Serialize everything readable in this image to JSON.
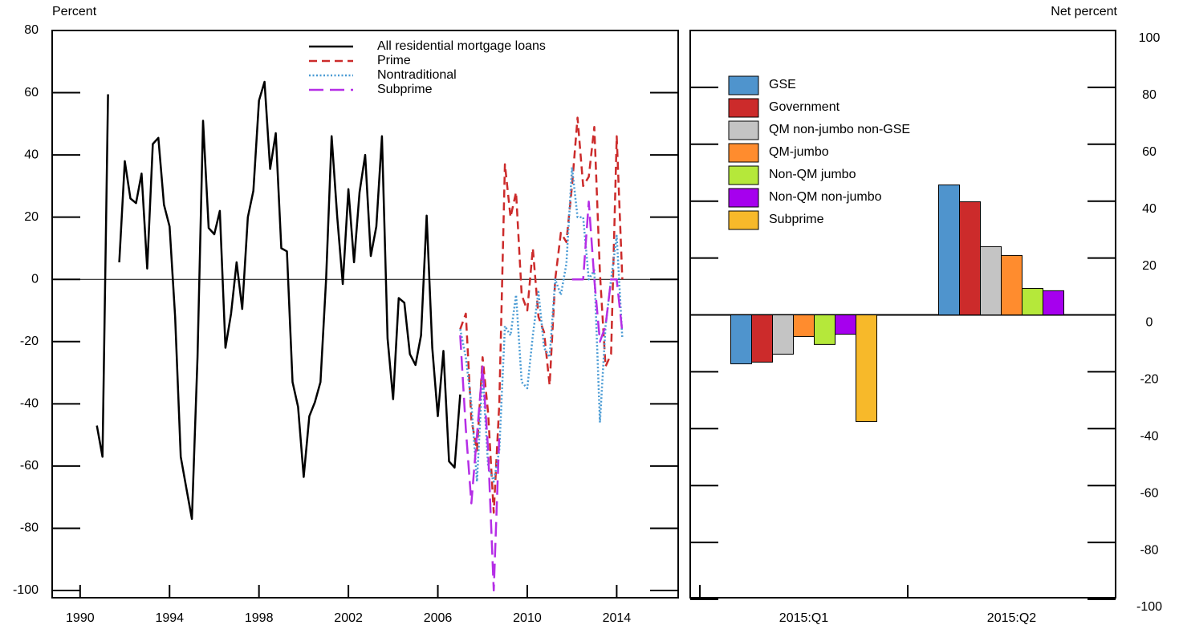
{
  "chart_data": [
    {
      "type": "line",
      "ylabel": "Percent",
      "xlim": [
        1988.75,
        2016.75
      ],
      "xticks": [
        1990,
        1994,
        1998,
        2002,
        2006,
        2010,
        2014
      ],
      "ylim": [
        -100,
        80
      ],
      "yticks": [
        -100,
        -80,
        -60,
        -40,
        -20,
        0,
        20,
        40,
        60,
        80
      ],
      "series": [
        {
          "name": "All residential mortgage loans",
          "color": "#000000",
          "style": "solid",
          "x": [
            1990.75,
            1991,
            1991.25,
            1991.5,
            1991.75,
            1992,
            1992.25,
            1992.5,
            1992.75,
            1993,
            1993.25,
            1993.5,
            1993.75,
            1994,
            1994.25,
            1994.5,
            1994.75,
            1995,
            1995.25,
            1995.5,
            1995.75,
            1996,
            1996.25,
            1996.5,
            1996.75,
            1997,
            1997.25,
            1997.5,
            1997.75,
            1998,
            1998.25,
            1998.5,
            1998.75,
            1999,
            1999.25,
            1999.5,
            1999.75,
            2000,
            2000.25,
            2000.5,
            2000.75,
            2001,
            2001.25,
            2001.5,
            2001.75,
            2002,
            2002.25,
            2002.5,
            2002.75,
            2003,
            2003.25,
            2003.5,
            2003.75,
            2004,
            2004.25,
            2004.5,
            2004.75,
            2005,
            2005.25,
            2005.5,
            2005.75,
            2006,
            2006.25,
            2006.5,
            2006.75,
            2007
          ],
          "values": [
            -47,
            -57,
            59.5,
            null,
            5.5,
            38,
            26,
            24.5,
            34,
            3.5,
            43.5,
            45.5,
            24,
            17,
            -12,
            -57,
            -67,
            -77,
            -25,
            51,
            16.5,
            14.5,
            22,
            -22,
            -11,
            5.5,
            -9.5,
            20,
            28.5,
            57.5,
            63.5,
            35.5,
            47,
            10,
            9,
            -33,
            -41,
            -63.5,
            -44,
            -39.5,
            -33,
            0,
            46,
            20,
            -1.5,
            29,
            5.5,
            28,
            40,
            7.5,
            17,
            46,
            -19,
            -38.5,
            -6,
            -7.5,
            -24,
            -27.5,
            -18,
            20.5,
            -22,
            -44,
            -23,
            -58.5,
            -60.5,
            -37
          ]
        },
        {
          "name": "Prime",
          "color": "#cc2b2b",
          "style": "dashed",
          "x": [
            2007,
            2007.25,
            2007.5,
            2007.75,
            2008,
            2008.25,
            2008.5,
            2008.75,
            2009,
            2009.25,
            2009.5,
            2009.75,
            2010,
            2010.25,
            2010.5,
            2010.75,
            2011,
            2011.25,
            2011.5,
            2011.75,
            2012,
            2012.25,
            2012.5,
            2012.75,
            2013,
            2013.25,
            2013.5,
            2013.75,
            2014,
            2014.25
          ],
          "values": [
            -16,
            -11,
            -45,
            -55,
            -25,
            -43,
            -75,
            -40,
            37,
            20,
            28,
            -5,
            -10,
            10,
            -12,
            -17,
            -34,
            0,
            15,
            12,
            30,
            52,
            30,
            33,
            49,
            2,
            -28,
            -24,
            46,
            0
          ]
        },
        {
          "name": "Nontraditional",
          "color": "#4a9bd4",
          "style": "dotted",
          "x": [
            2007,
            2007.25,
            2007.5,
            2007.75,
            2008,
            2008.25,
            2008.5,
            2008.75,
            2009,
            2009.25,
            2009.5,
            2009.75,
            2010,
            2010.25,
            2010.5,
            2010.75,
            2011,
            2011.25,
            2011.5,
            2011.75,
            2012,
            2012.25,
            2012.5,
            2012.75,
            2013,
            2013.25,
            2013.5,
            2013.75,
            2014,
            2014.25
          ],
          "values": [
            -16,
            -25,
            -40,
            -65,
            -30,
            -60,
            -65,
            -55,
            -15,
            -18,
            -5,
            -33,
            -35,
            -18,
            -4,
            -22,
            -25,
            0,
            -5,
            5,
            36,
            20,
            20,
            0,
            3,
            -46,
            -15,
            0,
            14,
            -19
          ]
        },
        {
          "name": "Subprime",
          "color": "#b52ee6",
          "style": "longdash",
          "x": [
            2007,
            2007.25,
            2007.5,
            2007.75,
            2008,
            2008.25,
            2008.5,
            2008.75,
            2009,
            2009.25,
            2009.5,
            2009.75,
            2010,
            2010.25,
            2010.5,
            2010.75,
            2011,
            2011.25,
            2011.5,
            2011.75,
            2012,
            2012.25,
            2012.5,
            2012.75,
            2013,
            2013.25,
            2013.5,
            2013.75,
            2014,
            2014.25
          ],
          "values": [
            -18,
            -48,
            -72,
            -50,
            -28,
            -55,
            -100,
            -50,
            null,
            null,
            null,
            null,
            null,
            null,
            null,
            null,
            null,
            null,
            null,
            null,
            0,
            0,
            0,
            25,
            0,
            -20,
            -15,
            0,
            0,
            -17
          ]
        }
      ]
    },
    {
      "type": "bar",
      "ylabel": "Net percent",
      "categories": [
        "2015:Q1",
        "2015:Q2"
      ],
      "ylim": [
        -100,
        100
      ],
      "yticks": [
        -100,
        -80,
        -60,
        -40,
        -20,
        0,
        20,
        40,
        60,
        80,
        100
      ],
      "series": [
        {
          "name": "GSE",
          "color": "#4f94cd",
          "values": [
            -17.2,
            45.7
          ]
        },
        {
          "name": "Government",
          "color": "#cc2b2b",
          "values": [
            -16.6,
            39.8
          ]
        },
        {
          "name": "QM non-jumbo non-GSE",
          "color": "#c4c4c4",
          "values": [
            -13.8,
            24
          ]
        },
        {
          "name": "QM-jumbo",
          "color": "#ff8c2e",
          "values": [
            -7.6,
            20.9
          ]
        },
        {
          "name": "Non-QM jumbo",
          "color": "#b5e83a",
          "values": [
            -10.4,
            9.3
          ]
        },
        {
          "name": "Non-QM non-jumbo",
          "color": "#a600ee",
          "values": [
            -6.8,
            8.5
          ]
        },
        {
          "name": "Subprime",
          "color": "#f7b92a",
          "values": [
            -37.5,
            null
          ]
        }
      ]
    }
  ]
}
